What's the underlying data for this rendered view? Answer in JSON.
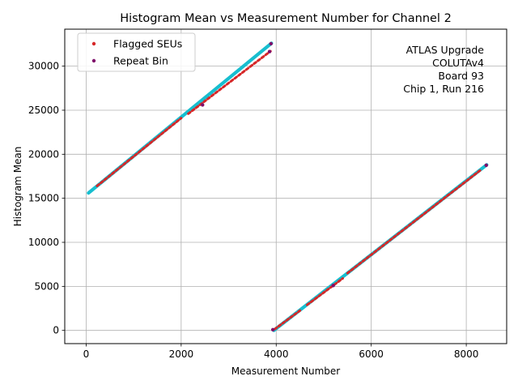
{
  "chart_data": {
    "type": "scatter",
    "title": "Histogram Mean vs Measurement Number for Channel 2",
    "xlabel": "Measurement Number",
    "ylabel": "Histogram Mean",
    "xlim": [
      -450,
      8850
    ],
    "ylim": [
      -1500,
      34200
    ],
    "xticks": [
      0,
      2000,
      4000,
      6000,
      8000
    ],
    "xtick_labels": [
      "0",
      "2000",
      "4000",
      "6000",
      "8000"
    ],
    "yticks": [
      0,
      5000,
      10000,
      15000,
      20000,
      25000,
      30000
    ],
    "ytick_labels": [
      "0",
      "5000",
      "10000",
      "15000",
      "20000",
      "25000",
      "30000"
    ],
    "grid": true,
    "legend_position": "top-left",
    "annotation": [
      "ATLAS Upgrade",
      "COLUTAv4",
      "Board 93",
      "Chip 1, Run 216"
    ],
    "series": [
      {
        "name": "Measurements",
        "color": "#17becf",
        "in_legend": false,
        "segments": [
          {
            "x": [
              50,
              3900
            ],
            "y": [
              15600,
              32600
            ]
          },
          {
            "x": [
              3950,
              8430
            ],
            "y": [
              0,
              18800
            ]
          }
        ]
      },
      {
        "name": "Flagged SEUs",
        "color": "#d62728",
        "in_legend": true,
        "segments": [
          {
            "x": [
              230,
              2000
            ],
            "y": [
              16400,
              24100
            ]
          },
          {
            "x": [
              2150,
              3880
            ],
            "y": [
              24600,
              31700
            ]
          },
          {
            "x": [
              3970,
              4500
            ],
            "y": [
              150,
              2250
            ]
          },
          {
            "x": [
              4650,
              5400
            ],
            "y": [
              2900,
              5900
            ]
          },
          {
            "x": [
              5500,
              8300
            ],
            "y": [
              6500,
              18200
            ]
          }
        ]
      },
      {
        "name": "Repeat Bin",
        "color": "#7f0f6a",
        "in_legend": true,
        "points": [
          [
            3930,
            80
          ],
          [
            3890,
            32550
          ],
          [
            3860,
            31650
          ],
          [
            8420,
            18750
          ],
          [
            2450,
            25600
          ],
          [
            5200,
            5100
          ]
        ]
      }
    ]
  }
}
